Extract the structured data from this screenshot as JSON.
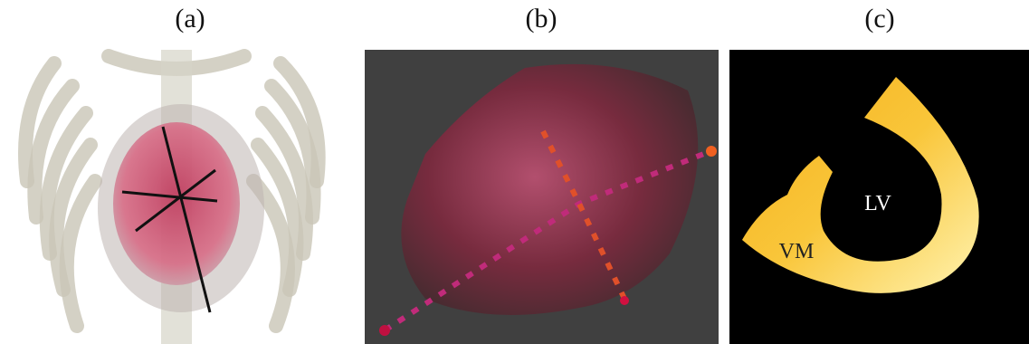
{
  "panels": [
    {
      "label": "(a)"
    },
    {
      "label": "(b)"
    },
    {
      "label": "(c)",
      "annotations": [
        "LV",
        "VM"
      ]
    }
  ]
}
